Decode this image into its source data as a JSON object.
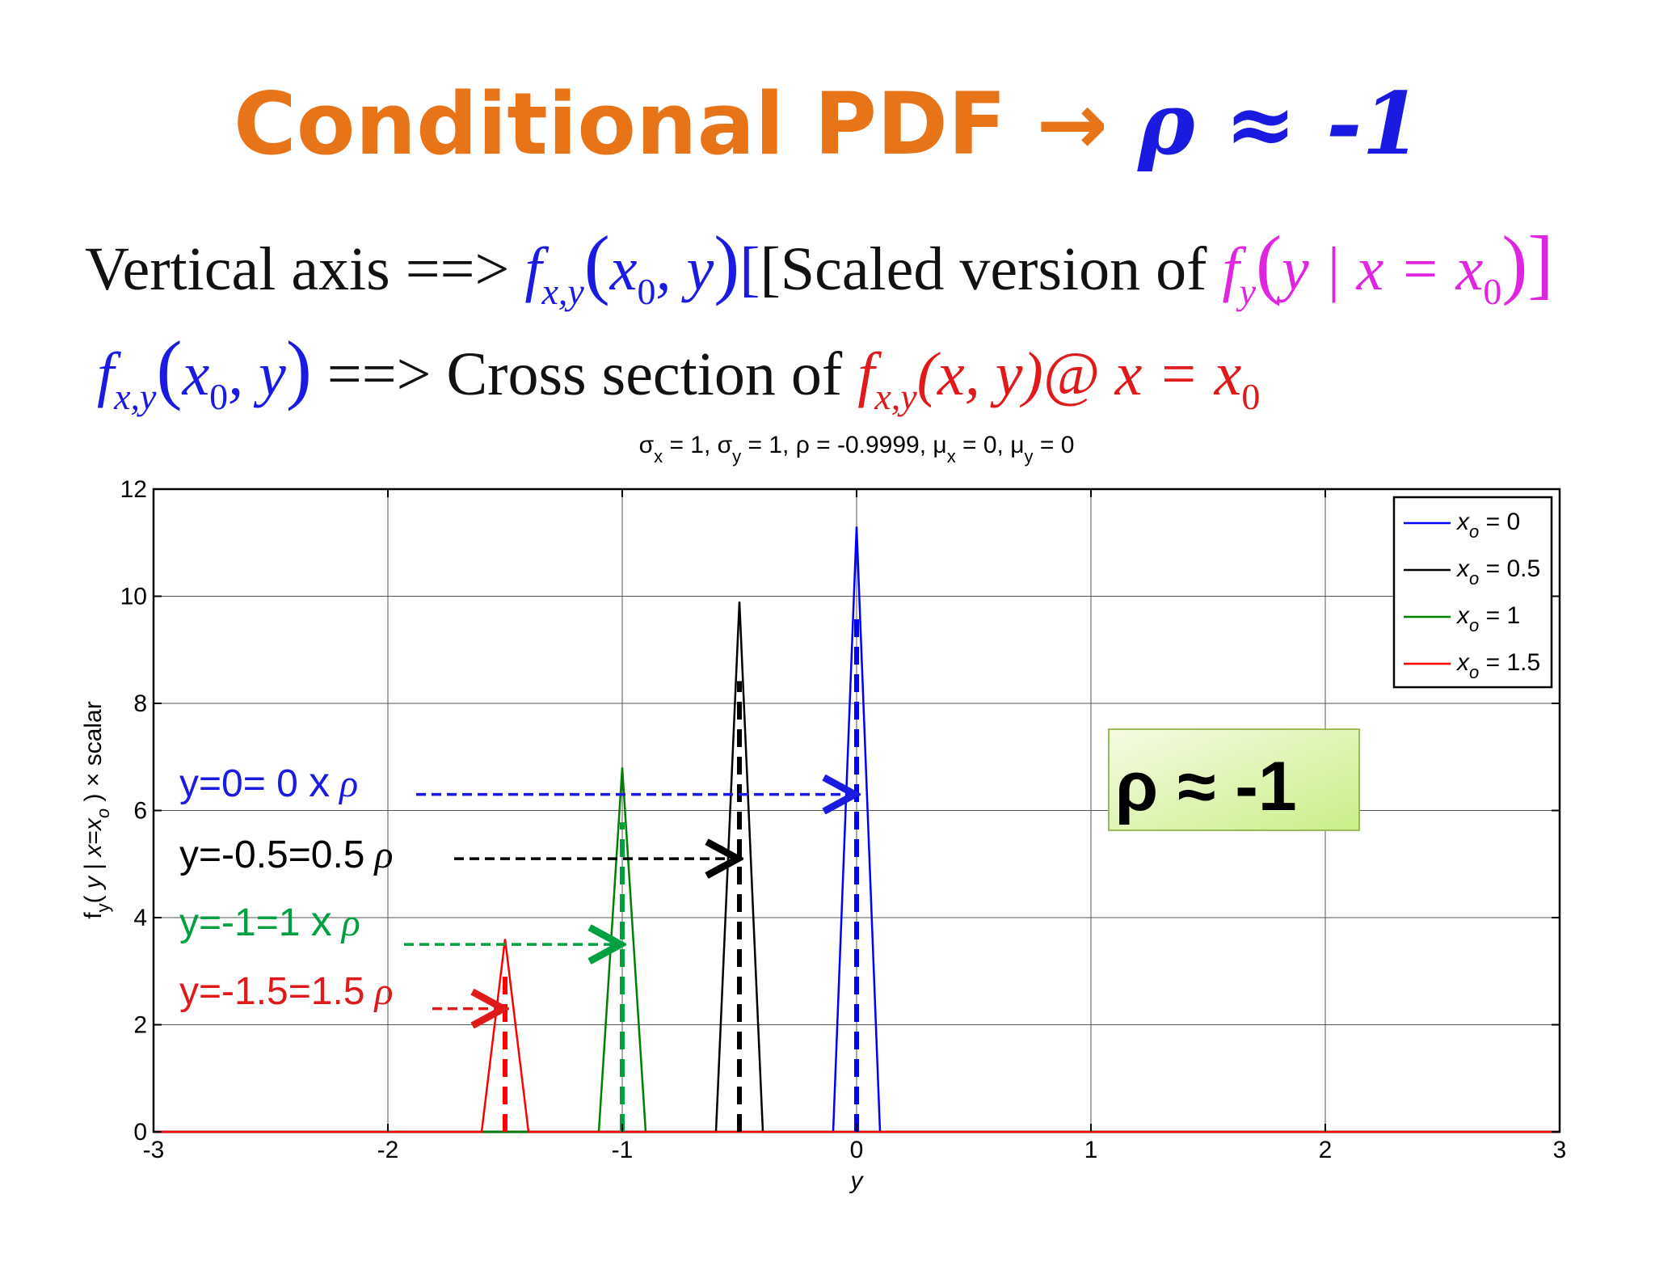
{
  "slide": {
    "title_main": "Conditional PDF",
    "title_arrow": "→",
    "title_rho": "ρ ≈ -1",
    "line1": {
      "prefix": "Vertical axis ==>",
      "f": "f",
      "sub_xy": "x,y",
      "lp": "(",
      "args": "x",
      "sub0": "0",
      "comma_y": ", y",
      "rp": ")",
      "bracket_text": "[Scaled version of",
      "fy": "f",
      "sub_y": "y",
      "cond": "y | x = x",
      "sub0b": "0",
      "close": ")]"
    },
    "line2": {
      "f": "f",
      "sub_xy": "x,y",
      "lp": "(",
      "x0": "x",
      "sub0": "0",
      "comma_y": ", y",
      "rp": ")",
      "arrow_text": "==> Cross section of",
      "f2": "f",
      "sub_xy2": "x,y",
      "xy": "(x, y)@ x = x",
      "sub0b": "0"
    }
  },
  "chart_data": {
    "type": "line",
    "title": "σx = 1, σy = 1, ρ = -0.9999, μx = 0, μy = 0",
    "xlabel": "y",
    "ylabel": "fy( y | x=xo ) × scalar",
    "xlim": [
      -3,
      3
    ],
    "ylim": [
      0,
      12
    ],
    "xticks": [
      -3,
      -2,
      -1,
      0,
      1,
      2,
      3
    ],
    "yticks": [
      0,
      2,
      4,
      6,
      8,
      10,
      12
    ],
    "grid": true,
    "legend_position": "top-right",
    "series": [
      {
        "name": "xo = 0",
        "color": "#0000ff",
        "x": [
          -3,
          -0.1,
          0,
          0.1,
          3
        ],
        "y": [
          0,
          0,
          11.3,
          0,
          0
        ]
      },
      {
        "name": "xo = 0.5",
        "color": "#000000",
        "x": [
          -3,
          -0.6,
          -0.5,
          -0.4,
          3
        ],
        "y": [
          0,
          0,
          9.9,
          0,
          0
        ]
      },
      {
        "name": "xo = 1",
        "color": "#008000",
        "x": [
          -3,
          -1.1,
          -1,
          -0.9,
          3
        ],
        "y": [
          0,
          0,
          6.8,
          0,
          0
        ]
      },
      {
        "name": "xo = 1.5",
        "color": "#ff0000",
        "x": [
          -3,
          -1.6,
          -1.5,
          -1.4,
          3
        ],
        "y": [
          0,
          0,
          3.6,
          0,
          0
        ]
      }
    ],
    "markers": [
      {
        "x": 0,
        "color": "#0000ff"
      },
      {
        "x": -0.5,
        "color": "#000000"
      },
      {
        "x": -1,
        "color": "#00a040"
      },
      {
        "x": -1.5,
        "color": "#ff0000"
      }
    ],
    "annotations": [
      {
        "text_main": "y=0= 0 ",
        "text_x": "x",
        "text_rho": " ρ",
        "color": "#1a1ae0",
        "arrow_to_x": 0,
        "arrow_y": 6.3
      },
      {
        "text_main": "y=-0.5=0.5",
        "text_x": "",
        "text_rho": " ρ",
        "color": "#000000",
        "arrow_to_x": -0.5,
        "arrow_y": 5.1
      },
      {
        "text_main": "y=-1=1 ",
        "text_x": "x",
        "text_rho": " ρ",
        "color": "#00a040",
        "arrow_to_x": -1,
        "arrow_y": 3.5
      },
      {
        "text_main": "y=-1.5=1.5",
        "text_x": "",
        "text_rho": " ρ",
        "color": "#e01a1a",
        "arrow_to_x": -1.5,
        "arrow_y": 2.3
      }
    ],
    "callout": "ρ ≈ -1"
  }
}
